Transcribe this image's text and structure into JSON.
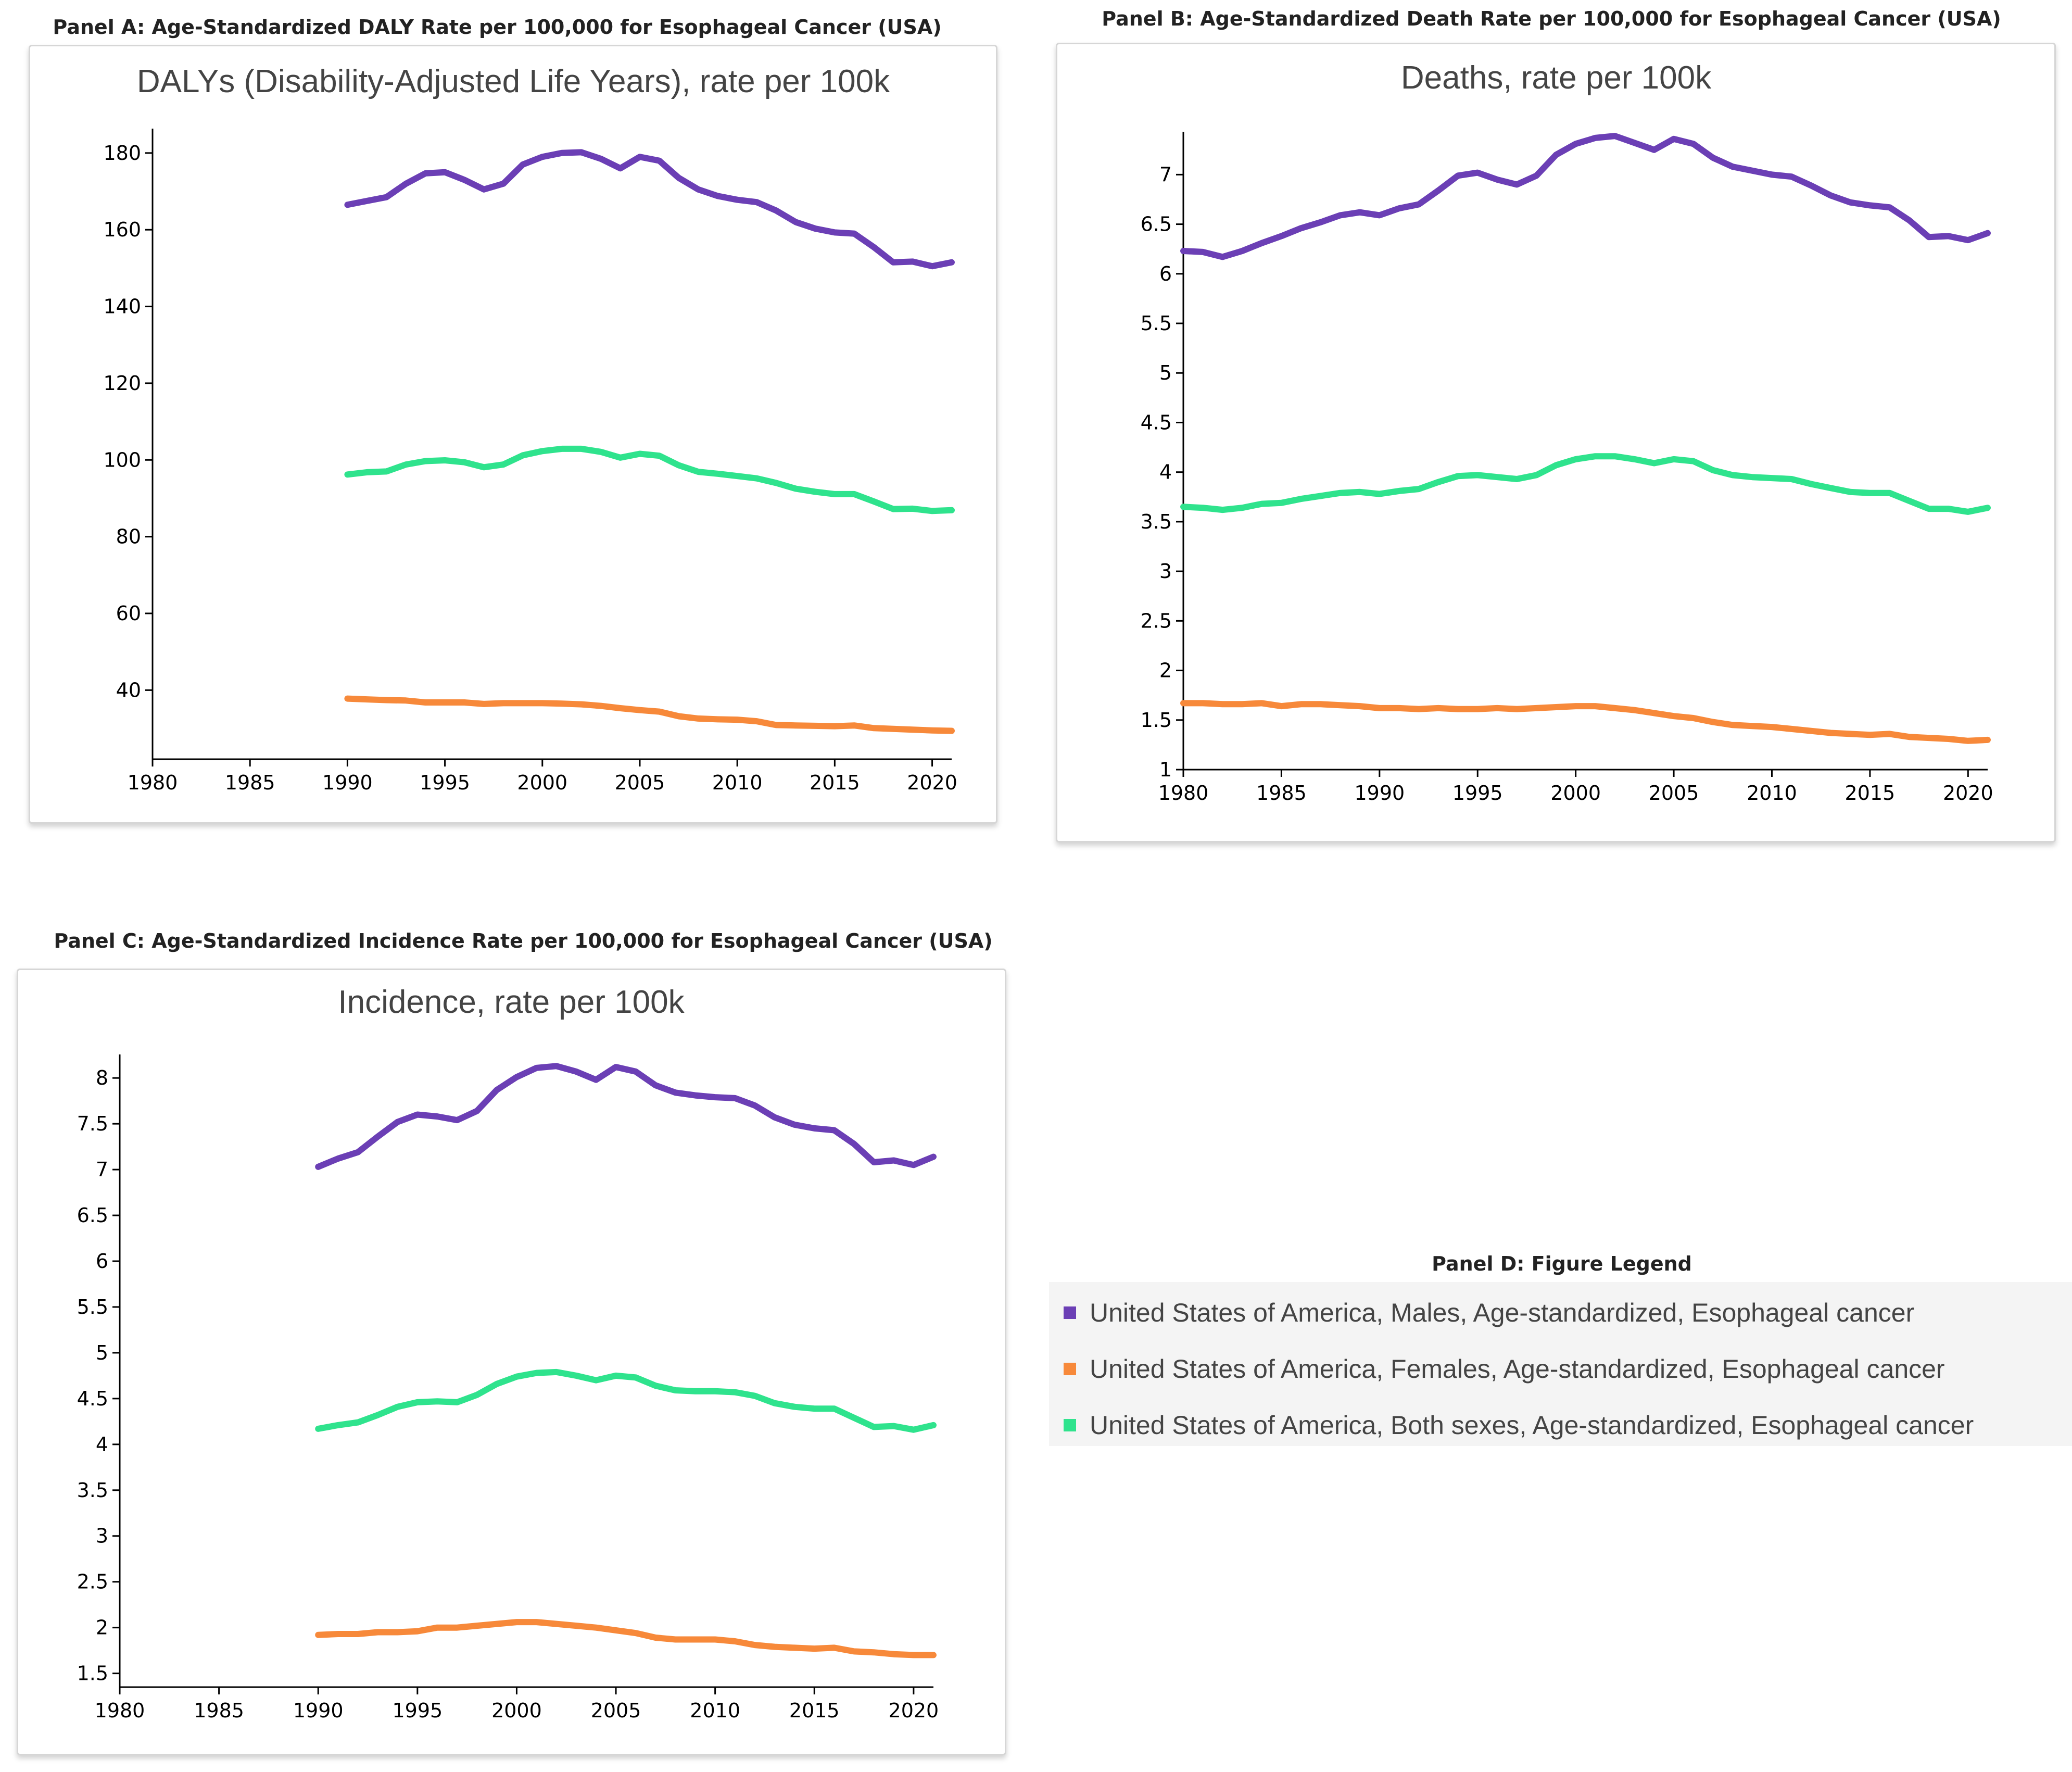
{
  "colors": {
    "males": "#6b3fb5",
    "females": "#f7893a",
    "both": "#2fe38d"
  },
  "panels": {
    "a": {
      "caption": "Panel A: Age-Standardized DALY Rate per 100,000 for Esophageal Cancer (USA)"
    },
    "b": {
      "caption": "Panel B: Age-Standardized Death Rate per 100,000 for Esophageal Cancer (USA)"
    },
    "c": {
      "caption": "Panel C: Age-Standardized Incidence Rate per 100,000 for Esophageal Cancer (USA)"
    },
    "d": {
      "caption": "Panel D: Figure Legend"
    }
  },
  "legend": {
    "items": [
      {
        "label": "United States of America, Males, Age-standardized, Esophageal cancer",
        "color": "#6b3fb5"
      },
      {
        "label": "United States of America, Females, Age-standardized, Esophageal cancer",
        "color": "#f7893a"
      },
      {
        "label": "United States of America, Both sexes, Age-standardized, Esophageal cancer",
        "color": "#2fe38d"
      }
    ]
  },
  "chart_data": [
    {
      "type": "line",
      "title": "DALYs (Disability-Adjusted Life Years), rate per 100k",
      "xlabel": "",
      "ylabel": "",
      "xlim": [
        1980,
        2021
      ],
      "ylim": [
        22,
        185
      ],
      "xticks": [
        1980,
        1985,
        1990,
        1995,
        2000,
        2005,
        2010,
        2015,
        2020
      ],
      "yticks": [
        40,
        60,
        80,
        100,
        120,
        140,
        160,
        180
      ],
      "grid": false,
      "x": [
        1990,
        1991,
        1992,
        1993,
        1994,
        1995,
        1996,
        1997,
        1998,
        1999,
        2000,
        2001,
        2002,
        2003,
        2004,
        2005,
        2006,
        2007,
        2008,
        2009,
        2010,
        2011,
        2012,
        2013,
        2014,
        2015,
        2016,
        2017,
        2018,
        2019,
        2020,
        2021
      ],
      "series": [
        {
          "name": "United States of America, Males, Age-standardized, Esophageal cancer",
          "color": "#6b3fb5",
          "values": [
            166.5,
            167.5,
            168.5,
            172,
            174.7,
            175,
            173,
            170.5,
            172,
            177,
            179,
            180,
            180.2,
            178.5,
            176,
            179,
            178,
            173.5,
            170.5,
            168.8,
            167.8,
            167.2,
            165,
            162,
            160.3,
            159.3,
            159,
            155.5,
            151.5,
            151.7,
            150.5,
            151.5
          ]
        },
        {
          "name": "United States of America, Females, Age-standardized, Esophageal cancer",
          "color": "#f7893a",
          "values": [
            37.8,
            37.6,
            37.4,
            37.3,
            36.8,
            36.8,
            36.8,
            36.4,
            36.6,
            36.6,
            36.6,
            36.5,
            36.3,
            35.9,
            35.3,
            34.8,
            34.4,
            33.2,
            32.6,
            32.4,
            32.3,
            31.9,
            30.9,
            30.8,
            30.7,
            30.6,
            30.8,
            30.1,
            29.9,
            29.7,
            29.5,
            29.4
          ]
        },
        {
          "name": "United States of America, Both sexes, Age-standardized, Esophageal cancer",
          "color": "#2fe38d",
          "values": [
            96.2,
            96.8,
            97,
            98.8,
            99.7,
            99.9,
            99.4,
            98.1,
            98.8,
            101.2,
            102.3,
            102.9,
            102.9,
            102.1,
            100.6,
            101.6,
            101.1,
            98.6,
            96.9,
            96.4,
            95.8,
            95.2,
            94,
            92.5,
            91.7,
            91.1,
            91.1,
            89.2,
            87.2,
            87.3,
            86.7,
            86.9
          ]
        }
      ]
    },
    {
      "type": "line",
      "title": "Deaths, rate per 100k",
      "xlabel": "",
      "ylabel": "",
      "xlim": [
        1980,
        2021
      ],
      "ylim": [
        1,
        7.38
      ],
      "xticks": [
        1980,
        1985,
        1990,
        1995,
        2000,
        2005,
        2010,
        2015,
        2020
      ],
      "yticks": [
        1,
        1.5,
        2,
        2.5,
        3,
        3.5,
        4,
        4.5,
        5,
        5.5,
        6,
        6.5,
        7
      ],
      "grid": false,
      "x": [
        1980,
        1981,
        1982,
        1983,
        1984,
        1985,
        1986,
        1987,
        1988,
        1989,
        1990,
        1991,
        1992,
        1993,
        1994,
        1995,
        1996,
        1997,
        1998,
        1999,
        2000,
        2001,
        2002,
        2003,
        2004,
        2005,
        2006,
        2007,
        2008,
        2009,
        2010,
        2011,
        2012,
        2013,
        2014,
        2015,
        2016,
        2017,
        2018,
        2019,
        2020,
        2021
      ],
      "series": [
        {
          "name": "United States of America, Males, Age-standardized, Esophageal cancer",
          "color": "#6b3fb5",
          "values": [
            6.23,
            6.22,
            6.17,
            6.23,
            6.31,
            6.38,
            6.46,
            6.52,
            6.59,
            6.62,
            6.59,
            6.66,
            6.7,
            6.84,
            6.99,
            7.02,
            6.95,
            6.9,
            6.99,
            7.2,
            7.31,
            7.37,
            7.39,
            7.32,
            7.25,
            7.36,
            7.31,
            7.17,
            7.08,
            7.04,
            7,
            6.98,
            6.89,
            6.79,
            6.72,
            6.69,
            6.67,
            6.54,
            6.37,
            6.38,
            6.34,
            6.41
          ]
        },
        {
          "name": "United States of America, Females, Age-standardized, Esophageal cancer",
          "color": "#f7893a",
          "values": [
            1.67,
            1.67,
            1.66,
            1.66,
            1.67,
            1.64,
            1.66,
            1.66,
            1.65,
            1.64,
            1.62,
            1.62,
            1.61,
            1.62,
            1.61,
            1.61,
            1.62,
            1.61,
            1.62,
            1.63,
            1.64,
            1.64,
            1.62,
            1.6,
            1.57,
            1.54,
            1.52,
            1.48,
            1.45,
            1.44,
            1.43,
            1.41,
            1.39,
            1.37,
            1.36,
            1.35,
            1.36,
            1.33,
            1.32,
            1.31,
            1.29,
            1.3
          ]
        },
        {
          "name": "United States of America, Both sexes, Age-standardized, Esophageal cancer",
          "color": "#2fe38d",
          "values": [
            3.65,
            3.64,
            3.62,
            3.64,
            3.68,
            3.69,
            3.73,
            3.76,
            3.79,
            3.8,
            3.78,
            3.81,
            3.83,
            3.9,
            3.96,
            3.97,
            3.95,
            3.93,
            3.97,
            4.07,
            4.13,
            4.16,
            4.16,
            4.13,
            4.09,
            4.13,
            4.11,
            4.02,
            3.97,
            3.95,
            3.94,
            3.93,
            3.88,
            3.84,
            3.8,
            3.79,
            3.79,
            3.71,
            3.63,
            3.63,
            3.6,
            3.64
          ]
        }
      ]
    },
    {
      "type": "line",
      "title": "Incidence, rate per 100k",
      "xlabel": "",
      "ylabel": "",
      "xlim": [
        1980,
        2021
      ],
      "ylim": [
        1.35,
        8.2
      ],
      "xticks": [
        1980,
        1985,
        1990,
        1995,
        2000,
        2005,
        2010,
        2015,
        2020
      ],
      "yticks": [
        1.5,
        2,
        2.5,
        3,
        3.5,
        4,
        4.5,
        5,
        5.5,
        6,
        6.5,
        7,
        7.5,
        8
      ],
      "grid": false,
      "x": [
        1990,
        1991,
        1992,
        1993,
        1994,
        1995,
        1996,
        1997,
        1998,
        1999,
        2000,
        2001,
        2002,
        2003,
        2004,
        2005,
        2006,
        2007,
        2008,
        2009,
        2010,
        2011,
        2012,
        2013,
        2014,
        2015,
        2016,
        2017,
        2018,
        2019,
        2020,
        2021
      ],
      "series": [
        {
          "name": "United States of America, Males, Age-standardized, Esophageal cancer",
          "color": "#6b3fb5",
          "values": [
            7.03,
            7.12,
            7.19,
            7.36,
            7.52,
            7.6,
            7.58,
            7.54,
            7.64,
            7.87,
            8.01,
            8.11,
            8.13,
            8.07,
            7.98,
            8.12,
            8.07,
            7.92,
            7.84,
            7.81,
            7.79,
            7.78,
            7.7,
            7.57,
            7.49,
            7.45,
            7.43,
            7.28,
            7.08,
            7.1,
            7.05,
            7.14
          ]
        },
        {
          "name": "United States of America, Females, Age-standardized, Esophageal cancer",
          "color": "#f7893a",
          "values": [
            1.92,
            1.93,
            1.93,
            1.95,
            1.95,
            1.96,
            2,
            2,
            2.02,
            2.04,
            2.06,
            2.06,
            2.04,
            2.02,
            2,
            1.97,
            1.94,
            1.89,
            1.87,
            1.87,
            1.87,
            1.85,
            1.81,
            1.79,
            1.78,
            1.77,
            1.78,
            1.74,
            1.73,
            1.71,
            1.7,
            1.7
          ]
        },
        {
          "name": "United States of America, Both sexes, Age-standardized, Esophageal cancer",
          "color": "#2fe38d",
          "values": [
            4.17,
            4.21,
            4.24,
            4.32,
            4.41,
            4.46,
            4.47,
            4.46,
            4.54,
            4.66,
            4.74,
            4.78,
            4.79,
            4.75,
            4.7,
            4.75,
            4.73,
            4.64,
            4.59,
            4.58,
            4.58,
            4.57,
            4.53,
            4.45,
            4.41,
            4.39,
            4.39,
            4.29,
            4.19,
            4.2,
            4.16,
            4.21
          ]
        }
      ]
    }
  ]
}
